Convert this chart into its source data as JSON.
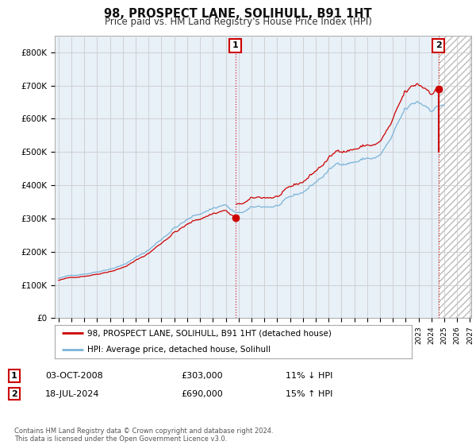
{
  "title": "98, PROSPECT LANE, SOLIHULL, B91 1HT",
  "subtitle": "Price paid vs. HM Land Registry's House Price Index (HPI)",
  "ylim": [
    0,
    850000
  ],
  "yticks": [
    0,
    100000,
    200000,
    300000,
    400000,
    500000,
    600000,
    700000,
    800000
  ],
  "ytick_labels": [
    "£0",
    "£100K",
    "£200K",
    "£300K",
    "£400K",
    "£500K",
    "£600K",
    "£700K",
    "£800K"
  ],
  "hpi_color": "#7ab4d8",
  "price_color": "#cc0000",
  "sale1_year": 2008.75,
  "sale1_price": 303000,
  "sale2_year": 2024.54,
  "sale2_price": 690000,
  "legend_label1": "98, PROSPECT LANE, SOLIHULL, B91 1HT (detached house)",
  "legend_label2": "HPI: Average price, detached house, Solihull",
  "table_row1": [
    "1",
    "03-OCT-2008",
    "£303,000",
    "11% ↓ HPI"
  ],
  "table_row2": [
    "2",
    "18-JUL-2024",
    "£690,000",
    "15% ↑ HPI"
  ],
  "footer": "Contains HM Land Registry data © Crown copyright and database right 2024.\nThis data is licensed under the Open Government Licence v3.0.",
  "background_color": "#ffffff",
  "plot_bg_color": "#e8f0f8",
  "grid_color": "#cccccc",
  "vline_color": "#cc0000",
  "hatch_color": "#bbbbbb"
}
